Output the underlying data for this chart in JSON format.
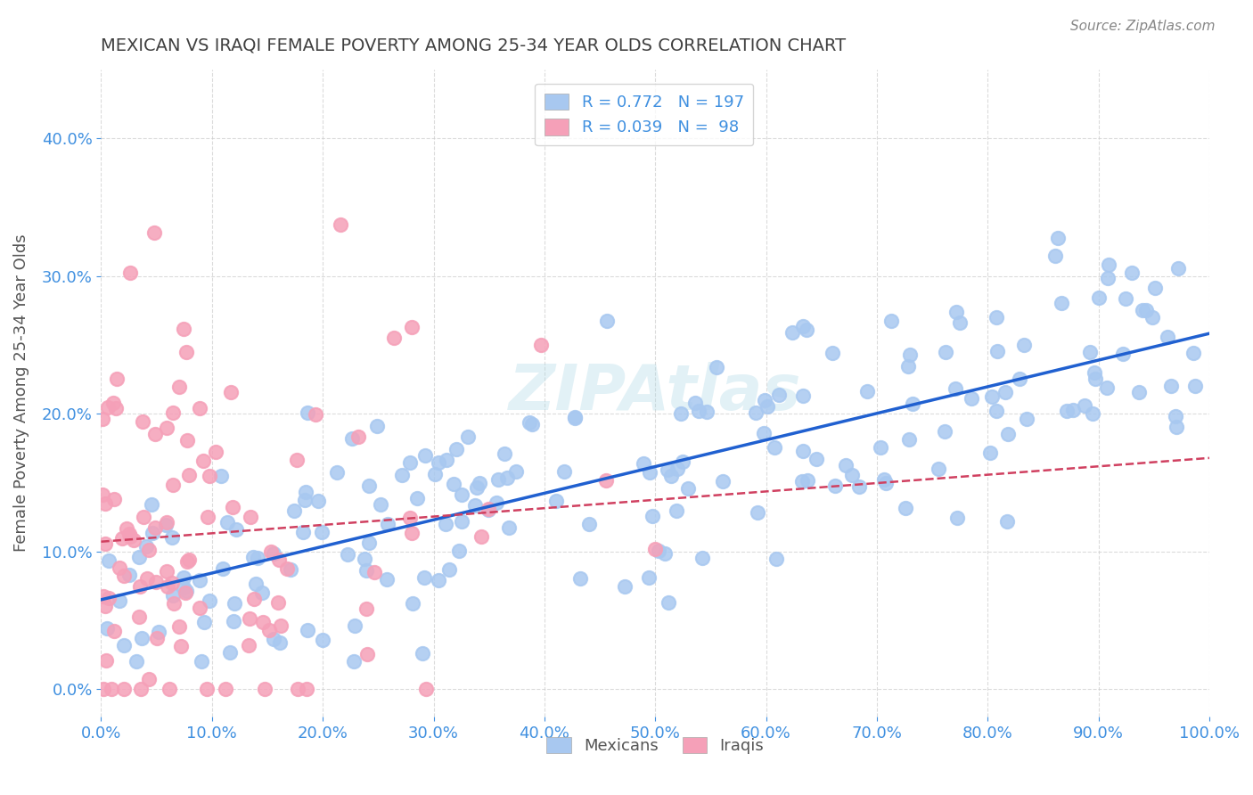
{
  "title": "MEXICAN VS IRAQI FEMALE POVERTY AMONG 25-34 YEAR OLDS CORRELATION CHART",
  "source": "Source: ZipAtlas.com",
  "ylabel": "Female Poverty Among 25-34 Year Olds",
  "xlim": [
    0,
    1.0
  ],
  "ylim": [
    -0.02,
    0.45
  ],
  "mexican_R": 0.772,
  "mexican_N": 197,
  "iraqi_R": 0.039,
  "iraqi_N": 98,
  "mexican_color": "#a8c8f0",
  "iraqi_color": "#f5a0b8",
  "mexican_line_color": "#2060d0",
  "iraqi_line_color": "#d04060",
  "watermark": "ZIPAtlas",
  "legend_mexican_label": "Mexicans",
  "legend_iraqi_label": "Iraqis",
  "background_color": "#ffffff",
  "grid_color": "#cccccc",
  "title_color": "#404040",
  "tick_label_color": "#4090e0"
}
